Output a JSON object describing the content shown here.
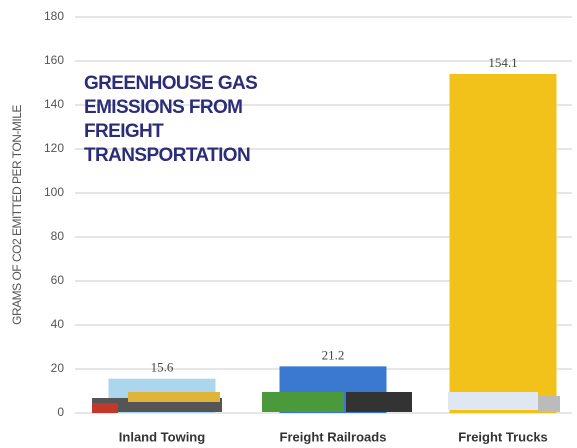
{
  "chart_data": {
    "type": "bar",
    "title": "GREENHOUSE GAS EMISSIONS FROM FREIGHT TRANSPORTATION",
    "y_label": "GRAMS OF CO2 EMITTED PER TON-MILE",
    "categories": [
      "Inland Towing",
      "Freight Railroads",
      "Freight Trucks"
    ],
    "values": [
      15.6,
      21.2,
      154.1
    ],
    "colors": [
      "#acd5ee",
      "#3b78d0",
      "#f2c21a"
    ],
    "ylim": [
      0,
      180
    ],
    "yticks": [
      0,
      20,
      40,
      60,
      80,
      100,
      120,
      140,
      160,
      180
    ],
    "grid": true
  }
}
